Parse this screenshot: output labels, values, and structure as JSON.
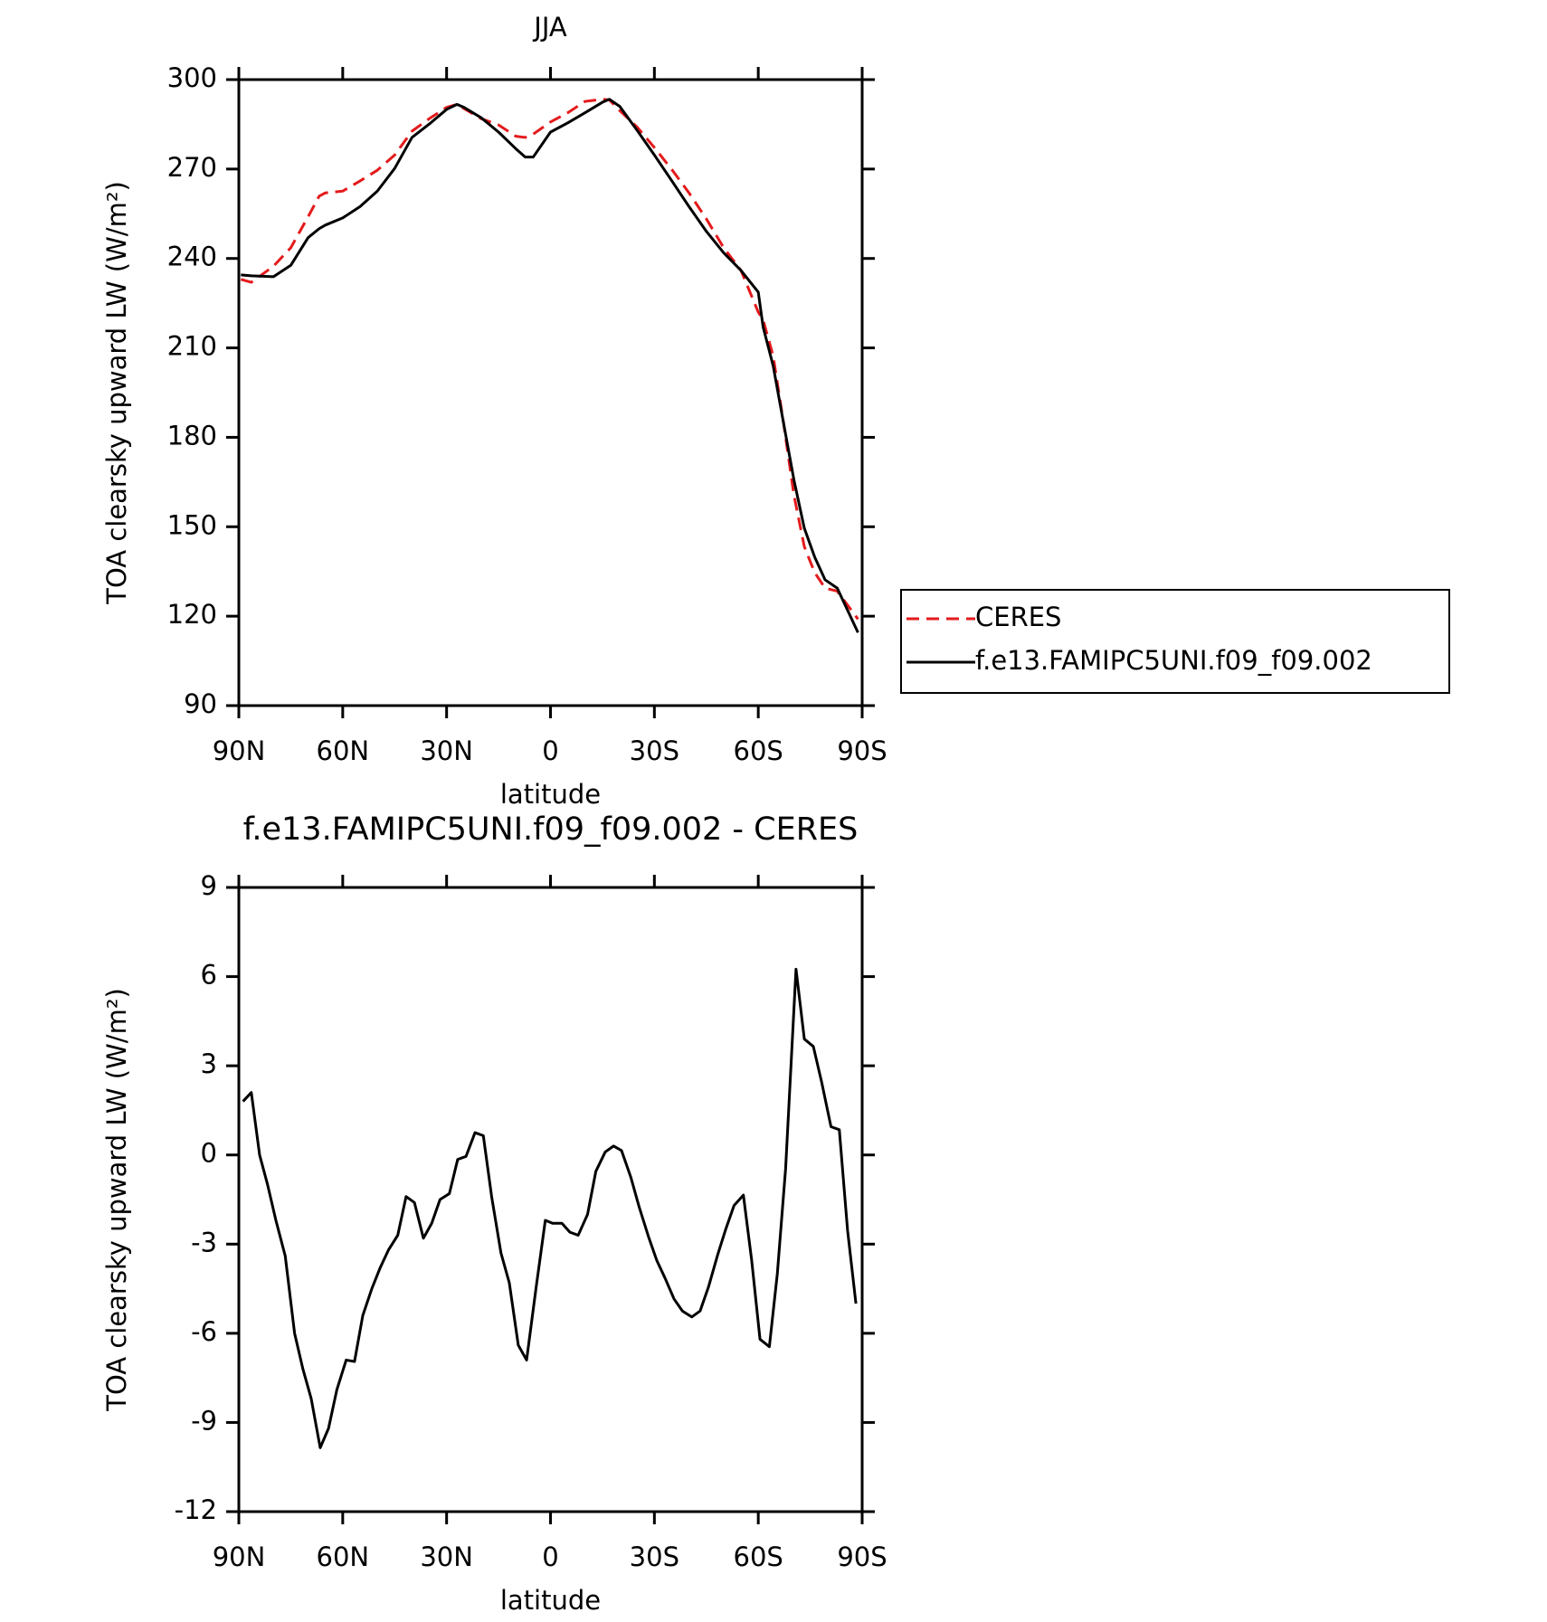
{
  "chart_data": [
    {
      "type": "line",
      "title": "JJA",
      "xlabel": "latitude",
      "ylabel": "TOA clearsky upward LW (W/m²)",
      "x": [
        89.4,
        86.4,
        80,
        75,
        70,
        66.8,
        65,
        60,
        55,
        50,
        45,
        40,
        35,
        30,
        27,
        25,
        20,
        15,
        10,
        7.3,
        5,
        0,
        -5,
        -10,
        -15,
        -17,
        -20,
        -25,
        -30,
        -35,
        -40,
        -45,
        -50,
        -55,
        -60,
        -61.4,
        -64.3,
        -67.3,
        -70.3,
        -73.3,
        -76.3,
        -79.3,
        -82.8,
        -88.8
      ],
      "series": [
        {
          "name": "CERES",
          "color": "#e41a1c",
          "line_style": "dashed",
          "values": [
            233,
            232,
            237.4,
            243.6,
            254,
            260.9,
            262,
            262.6,
            266,
            269.6,
            274.7,
            282.7,
            286.9,
            290.7,
            291.7,
            290.3,
            286.9,
            284.8,
            281,
            280.6,
            281.7,
            285.8,
            288.9,
            292.7,
            293.4,
            293.2,
            289.6,
            284.1,
            277.2,
            269.9,
            262,
            253.3,
            243.6,
            236,
            222,
            219.4,
            207.3,
            184.8,
            160.6,
            143.3,
            134.6,
            129.4,
            128.4,
            119
          ]
        },
        {
          "name": "f.e13.FAMIPC5UNI.f09_f09.002",
          "color": "#000000",
          "line_style": "solid",
          "values": [
            234.5,
            234.2,
            233.9,
            237.7,
            247,
            250,
            251.2,
            253.6,
            257.4,
            262.6,
            270.2,
            280.6,
            285.1,
            290,
            291.7,
            290.7,
            287.2,
            282.4,
            276.8,
            274,
            274,
            282.4,
            285.5,
            288.9,
            292.4,
            293.4,
            291,
            283,
            274.7,
            266.1,
            257.4,
            249.1,
            241.9,
            236,
            228.7,
            217,
            204,
            184.8,
            165.7,
            149.5,
            139.8,
            132.2,
            129.4,
            114.5
          ]
        }
      ],
      "xlim": [
        90,
        -90
      ],
      "xticks": [
        {
          "value": 90,
          "label": "90N"
        },
        {
          "value": 60,
          "label": "60N"
        },
        {
          "value": 30,
          "label": "30N"
        },
        0,
        {
          "value": -30,
          "label": "30S"
        },
        {
          "value": -60,
          "label": "60S"
        },
        {
          "value": -90,
          "label": "90S"
        }
      ],
      "ylim": [
        90,
        300
      ],
      "yticks": [
        90,
        120,
        150,
        180,
        210,
        240,
        270,
        300
      ],
      "legend": "right"
    },
    {
      "type": "line",
      "title": "f.e13.FAMIPC5UNI.f09_f09.002 - CERES",
      "xlabel": "latitude",
      "ylabel": "TOA clearsky upward LW (W/m²)",
      "x": [
        88.8,
        86.4,
        84.0,
        81.7,
        79.3,
        76.6,
        73.9,
        71.5,
        69.1,
        66.5,
        64.1,
        61.7,
        59.0,
        56.6,
        54.2,
        51.6,
        49.2,
        46.8,
        44.1,
        41.7,
        39.3,
        36.7,
        34.3,
        31.9,
        29.2,
        26.8,
        24.4,
        21.8,
        19.4,
        17.0,
        14.3,
        11.9,
        9.3,
        6.9,
        4.2,
        1.5,
        -0.6,
        -3.3,
        -5.6,
        -8.0,
        -10.7,
        -13.1,
        -15.8,
        -18.2,
        -20.5,
        -23.2,
        -25.6,
        -28.3,
        -30.7,
        -33.1,
        -35.7,
        -38.1,
        -40.8,
        -43.2,
        -45.6,
        -48.3,
        -50.6,
        -53.0,
        -55.7,
        -58.1,
        -60.5,
        -63.2,
        -65.5,
        -67.9,
        -70.9,
        -73.3,
        -75.9,
        -78.3,
        -81.0,
        -83.4,
        -85.8,
        -88.2
      ],
      "series": [
        {
          "color": "#000000",
          "line_style": "solid",
          "values": [
            1.8,
            2.1,
            0,
            -1.0,
            -2.2,
            -3.4,
            -6.0,
            -7.2,
            -8.2,
            -9.85,
            -9.2,
            -7.9,
            -6.9,
            -6.95,
            -5.4,
            -4.5,
            -3.8,
            -3.2,
            -2.7,
            -1.4,
            -1.6,
            -2.8,
            -2.3,
            -1.5,
            -1.3,
            -0.15,
            -0.05,
            0.75,
            0.65,
            -1.4,
            -3.3,
            -4.3,
            -6.4,
            -6.9,
            -4.5,
            -2.2,
            -2.3,
            -2.3,
            -2.6,
            -2.7,
            -2.0,
            -0.55,
            0.1,
            0.3,
            0.15,
            -0.75,
            -1.75,
            -2.75,
            -3.55,
            -4.15,
            -4.85,
            -5.25,
            -5.45,
            -5.25,
            -4.45,
            -3.35,
            -2.5,
            -1.7,
            -1.35,
            -3.55,
            -6.2,
            -6.45,
            -4.0,
            -0.45,
            6.25,
            3.9,
            3.65,
            2.45,
            0.95,
            0.85,
            -2.55,
            -5.0
          ]
        }
      ],
      "xlim": [
        90,
        -90
      ],
      "xticks": [
        {
          "value": 90,
          "label": "90N"
        },
        {
          "value": 60,
          "label": "60N"
        },
        {
          "value": 30,
          "label": "30N"
        },
        0,
        {
          "value": -30,
          "label": "30S"
        },
        {
          "value": -60,
          "label": "60S"
        },
        {
          "value": -90,
          "label": "90S"
        }
      ],
      "ylim": [
        -12,
        9
      ],
      "yticks": [
        -12,
        -9,
        -6,
        -3,
        0,
        3,
        6,
        9
      ]
    }
  ]
}
